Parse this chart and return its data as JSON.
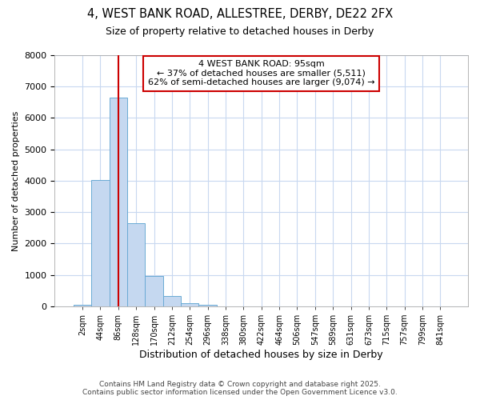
{
  "title_line1": "4, WEST BANK ROAD, ALLESTREE, DERBY, DE22 2FX",
  "title_line2": "Size of property relative to detached houses in Derby",
  "xlabel": "Distribution of detached houses by size in Derby",
  "ylabel": "Number of detached properties",
  "categories": [
    "2sqm",
    "44sqm",
    "86sqm",
    "128sqm",
    "170sqm",
    "212sqm",
    "254sqm",
    "296sqm",
    "338sqm",
    "380sqm",
    "422sqm",
    "464sqm",
    "506sqm",
    "547sqm",
    "589sqm",
    "631sqm",
    "673sqm",
    "715sqm",
    "757sqm",
    "799sqm",
    "841sqm"
  ],
  "values": [
    60,
    4030,
    6650,
    2650,
    960,
    320,
    105,
    55,
    0,
    0,
    0,
    0,
    0,
    0,
    0,
    0,
    0,
    0,
    0,
    0,
    0
  ],
  "bar_color": "#c5d8f0",
  "bar_edge_color": "#6aaad4",
  "ylim": [
    0,
    8000
  ],
  "yticks": [
    0,
    1000,
    2000,
    3000,
    4000,
    5000,
    6000,
    7000,
    8000
  ],
  "red_line_x": 2.0,
  "annotation_title": "4 WEST BANK ROAD: 95sqm",
  "annotation_line1": "← 37% of detached houses are smaller (5,511)",
  "annotation_line2": "62% of semi-detached houses are larger (9,074) →",
  "annotation_box_color": "#ffffff",
  "annotation_box_edge": "#cc0000",
  "footer_line1": "Contains HM Land Registry data © Crown copyright and database right 2025.",
  "footer_line2": "Contains public sector information licensed under the Open Government Licence v3.0.",
  "background_color": "#ffffff",
  "grid_color": "#c8d8f0"
}
